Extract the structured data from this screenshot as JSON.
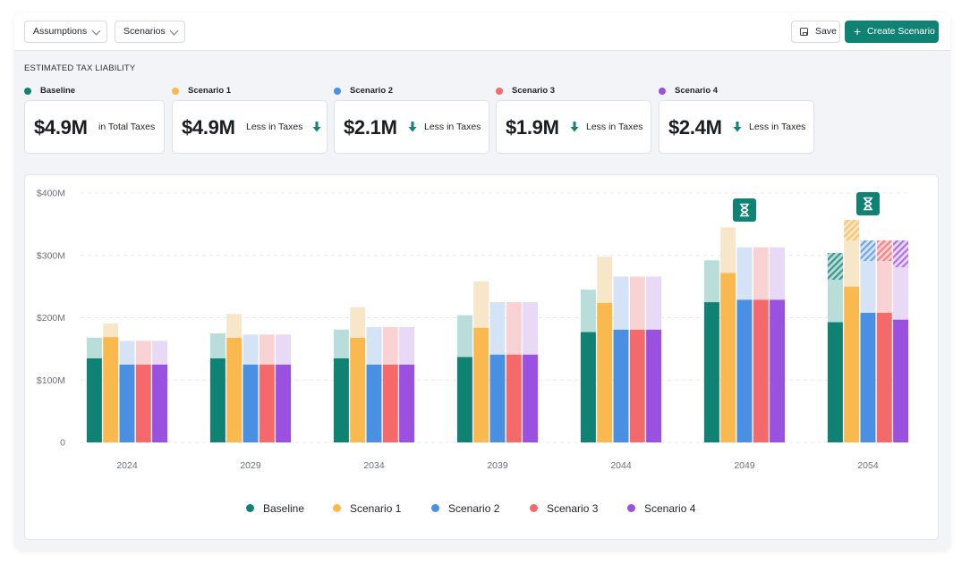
{
  "toolbar": {
    "assumptions_label": "Assumptions",
    "scenarios_label": "Scenarios",
    "save_label": "Save",
    "create_label": "Create Scenario",
    "accent_color": "#0f8273"
  },
  "section_title": "ESTIMATED TAX LIABILITY",
  "kpis": [
    {
      "name": "Baseline",
      "color": "#0f8273",
      "value": "$4.9M",
      "desc": "in Total Taxes",
      "arrow": false
    },
    {
      "name": "Scenario 1",
      "color": "#f9b94e",
      "value": "$4.9M",
      "desc": "Less in Taxes",
      "arrow": true,
      "arrow_position": "after"
    },
    {
      "name": "Scenario 2",
      "color": "#4a90e2",
      "value": "$2.1M",
      "desc": "Less in Taxes",
      "arrow": true,
      "arrow_position": "before"
    },
    {
      "name": "Scenario 3",
      "color": "#f46a6a",
      "value": "$1.9M",
      "desc": "Less in Taxes",
      "arrow": true,
      "arrow_position": "before"
    },
    {
      "name": "Scenario 4",
      "color": "#9b51e0",
      "value": "$2.4M",
      "desc": "Less in Taxes",
      "arrow": true,
      "arrow_position": "before"
    }
  ],
  "chart_data": {
    "type": "bar",
    "stacked": true,
    "title": "",
    "xlabel": "",
    "ylabel": "",
    "ylim": [
      0,
      400
    ],
    "y_ticks": [
      {
        "value": 0,
        "label": "0"
      },
      {
        "value": 100,
        "label": "$100M"
      },
      {
        "value": 200,
        "label": "$200M"
      },
      {
        "value": 300,
        "label": "$300M"
      },
      {
        "value": 400,
        "label": "$400M"
      }
    ],
    "grid": true,
    "legend_position": "bottom",
    "categories": [
      "2024",
      "2029",
      "2034",
      "2039",
      "2044",
      "2049",
      "2054"
    ],
    "series": [
      {
        "name": "Baseline",
        "color": "#0f8273",
        "light": "#b9ddd8",
        "base": [
          135,
          135,
          135,
          137,
          177,
          225,
          193
        ],
        "upper": [
          33,
          40,
          46,
          67,
          68,
          67,
          68
        ],
        "hatched": [
          0,
          0,
          0,
          0,
          0,
          0,
          43
        ]
      },
      {
        "name": "Scenario 1",
        "color": "#f9b94e",
        "light": "#f8e6c9",
        "base": [
          169,
          168,
          168,
          184,
          224,
          272,
          250
        ],
        "upper": [
          22,
          38,
          49,
          74,
          74,
          73,
          74
        ],
        "hatched": [
          0,
          0,
          0,
          0,
          0,
          0,
          33
        ]
      },
      {
        "name": "Scenario 2",
        "color": "#4a90e2",
        "light": "#d5e3f6",
        "base": [
          125,
          125,
          125,
          141,
          181,
          229,
          208
        ],
        "upper": [
          38,
          48,
          60,
          84,
          85,
          84,
          83
        ],
        "hatched": [
          0,
          0,
          0,
          0,
          0,
          0,
          33
        ]
      },
      {
        "name": "Scenario 3",
        "color": "#f46a6a",
        "light": "#f9d3d3",
        "base": [
          125,
          125,
          125,
          141,
          181,
          229,
          208
        ],
        "upper": [
          38,
          48,
          60,
          84,
          85,
          84,
          83
        ],
        "hatched": [
          0,
          0,
          0,
          0,
          0,
          0,
          33
        ]
      },
      {
        "name": "Scenario 4",
        "color": "#9b51e0",
        "light": "#e8daf6",
        "base": [
          125,
          125,
          125,
          141,
          181,
          229,
          197
        ],
        "upper": [
          38,
          48,
          60,
          84,
          85,
          84,
          84
        ],
        "hatched": [
          0,
          0,
          0,
          0,
          0,
          0,
          43
        ]
      }
    ],
    "markers": [
      {
        "category": "2049",
        "icon": "hourglass-icon"
      },
      {
        "category": "2054",
        "icon": "hourglass-icon"
      }
    ]
  }
}
